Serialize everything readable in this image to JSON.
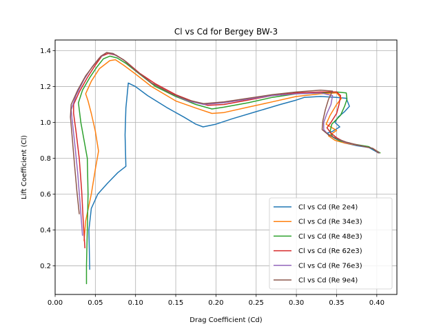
{
  "chart_data": {
    "type": "line",
    "title": "Cl vs Cd for Bergey BW-3",
    "xlabel": "Drag Coefficient (Cd)",
    "ylabel": "Lift Coefficient (Cl)",
    "xlim": [
      0.0,
      0.425
    ],
    "ylim": [
      0.04,
      1.46
    ],
    "xticks": [
      "0.00",
      "0.05",
      "0.10",
      "0.15",
      "0.20",
      "0.25",
      "0.30",
      "0.35",
      "0.40"
    ],
    "yticks": [
      "0.2",
      "0.4",
      "0.6",
      "0.8",
      "1.0",
      "1.2",
      "1.4"
    ],
    "grid": true,
    "legend_position": "lower-right",
    "series": [
      {
        "name": "Cl vs Cd (Re 2e4)",
        "color": "#1f77b4",
        "points": [
          [
            0.043,
            0.18
          ],
          [
            0.042,
            0.4
          ],
          [
            0.045,
            0.52
          ],
          [
            0.053,
            0.6
          ],
          [
            0.065,
            0.66
          ],
          [
            0.078,
            0.72
          ],
          [
            0.088,
            0.755
          ],
          [
            0.087,
            0.93
          ],
          [
            0.088,
            1.08
          ],
          [
            0.091,
            1.22
          ],
          [
            0.1,
            1.2
          ],
          [
            0.115,
            1.15
          ],
          [
            0.14,
            1.08
          ],
          [
            0.16,
            1.03
          ],
          [
            0.175,
            0.99
          ],
          [
            0.184,
            0.975
          ],
          [
            0.2,
            0.99
          ],
          [
            0.22,
            1.02
          ],
          [
            0.25,
            1.06
          ],
          [
            0.28,
            1.1
          ],
          [
            0.3,
            1.125
          ],
          [
            0.31,
            1.14
          ],
          [
            0.33,
            1.145
          ],
          [
            0.35,
            1.14
          ],
          [
            0.362,
            1.135
          ],
          [
            0.366,
            1.09
          ],
          [
            0.36,
            1.06
          ],
          [
            0.352,
            1.03
          ],
          [
            0.348,
            1.0
          ],
          [
            0.354,
            0.975
          ],
          [
            0.345,
            0.95
          ],
          [
            0.338,
            0.94
          ],
          [
            0.348,
            0.91
          ],
          [
            0.36,
            0.885
          ],
          [
            0.375,
            0.87
          ],
          [
            0.39,
            0.86
          ],
          [
            0.402,
            0.83
          ]
        ]
      },
      {
        "name": "Cl vs Cd (Re 34e3)",
        "color": "#ff7f0e",
        "points": [
          [
            0.036,
            0.34
          ],
          [
            0.038,
            0.45
          ],
          [
            0.045,
            0.6
          ],
          [
            0.05,
            0.74
          ],
          [
            0.054,
            0.84
          ],
          [
            0.05,
            0.95
          ],
          [
            0.045,
            1.05
          ],
          [
            0.041,
            1.12
          ],
          [
            0.038,
            1.16
          ],
          [
            0.045,
            1.23
          ],
          [
            0.055,
            1.3
          ],
          [
            0.068,
            1.345
          ],
          [
            0.075,
            1.35
          ],
          [
            0.085,
            1.32
          ],
          [
            0.1,
            1.27
          ],
          [
            0.12,
            1.2
          ],
          [
            0.15,
            1.12
          ],
          [
            0.175,
            1.08
          ],
          [
            0.195,
            1.05
          ],
          [
            0.21,
            1.055
          ],
          [
            0.24,
            1.085
          ],
          [
            0.27,
            1.115
          ],
          [
            0.3,
            1.145
          ],
          [
            0.33,
            1.16
          ],
          [
            0.35,
            1.165
          ],
          [
            0.356,
            1.135
          ],
          [
            0.35,
            1.1
          ],
          [
            0.342,
            1.04
          ],
          [
            0.337,
            0.99
          ],
          [
            0.35,
            0.955
          ],
          [
            0.34,
            0.925
          ],
          [
            0.348,
            0.9
          ],
          [
            0.36,
            0.885
          ],
          [
            0.38,
            0.87
          ],
          [
            0.395,
            0.855
          ],
          [
            0.404,
            0.83
          ]
        ]
      },
      {
        "name": "Cl vs Cd (Re 48e3)",
        "color": "#2ca02c",
        "points": [
          [
            0.039,
            0.1
          ],
          [
            0.039,
            0.2
          ],
          [
            0.04,
            0.4
          ],
          [
            0.041,
            0.6
          ],
          [
            0.04,
            0.8
          ],
          [
            0.036,
            0.9
          ],
          [
            0.032,
            1.0
          ],
          [
            0.029,
            1.11
          ],
          [
            0.034,
            1.18
          ],
          [
            0.043,
            1.25
          ],
          [
            0.052,
            1.31
          ],
          [
            0.06,
            1.355
          ],
          [
            0.068,
            1.37
          ],
          [
            0.077,
            1.36
          ],
          [
            0.088,
            1.33
          ],
          [
            0.105,
            1.27
          ],
          [
            0.125,
            1.2
          ],
          [
            0.15,
            1.145
          ],
          [
            0.175,
            1.1
          ],
          [
            0.195,
            1.075
          ],
          [
            0.21,
            1.085
          ],
          [
            0.24,
            1.11
          ],
          [
            0.27,
            1.14
          ],
          [
            0.3,
            1.16
          ],
          [
            0.33,
            1.165
          ],
          [
            0.35,
            1.17
          ],
          [
            0.362,
            1.165
          ],
          [
            0.363,
            1.13
          ],
          [
            0.36,
            1.09
          ],
          [
            0.355,
            1.04
          ],
          [
            0.344,
            0.99
          ],
          [
            0.342,
            0.95
          ],
          [
            0.345,
            0.92
          ],
          [
            0.355,
            0.895
          ],
          [
            0.37,
            0.88
          ],
          [
            0.39,
            0.865
          ],
          [
            0.404,
            0.83
          ]
        ]
      },
      {
        "name": "Cl vs Cd (Re 62e3)",
        "color": "#d62728",
        "points": [
          [
            0.037,
            0.3
          ],
          [
            0.035,
            0.45
          ],
          [
            0.033,
            0.62
          ],
          [
            0.03,
            0.8
          ],
          [
            0.026,
            0.95
          ],
          [
            0.023,
            1.05
          ],
          [
            0.023,
            1.1
          ],
          [
            0.03,
            1.17
          ],
          [
            0.04,
            1.25
          ],
          [
            0.05,
            1.32
          ],
          [
            0.058,
            1.37
          ],
          [
            0.066,
            1.385
          ],
          [
            0.076,
            1.375
          ],
          [
            0.088,
            1.34
          ],
          [
            0.105,
            1.275
          ],
          [
            0.125,
            1.215
          ],
          [
            0.15,
            1.155
          ],
          [
            0.17,
            1.12
          ],
          [
            0.19,
            1.095
          ],
          [
            0.21,
            1.1
          ],
          [
            0.24,
            1.125
          ],
          [
            0.27,
            1.15
          ],
          [
            0.3,
            1.165
          ],
          [
            0.33,
            1.17
          ],
          [
            0.35,
            1.17
          ],
          [
            0.355,
            1.15
          ],
          [
            0.353,
            1.1
          ],
          [
            0.35,
            1.05
          ],
          [
            0.343,
            1.0
          ],
          [
            0.338,
            0.97
          ],
          [
            0.343,
            0.94
          ],
          [
            0.35,
            0.915
          ],
          [
            0.36,
            0.89
          ],
          [
            0.38,
            0.87
          ],
          [
            0.395,
            0.855
          ],
          [
            0.402,
            0.83
          ]
        ]
      },
      {
        "name": "Cl vs Cd (Re 76e3)",
        "color": "#9467bd",
        "points": [
          [
            0.034,
            0.37
          ],
          [
            0.031,
            0.55
          ],
          [
            0.028,
            0.72
          ],
          [
            0.024,
            0.9
          ],
          [
            0.021,
            1.02
          ],
          [
            0.02,
            1.07
          ],
          [
            0.026,
            1.15
          ],
          [
            0.036,
            1.24
          ],
          [
            0.046,
            1.31
          ],
          [
            0.055,
            1.36
          ],
          [
            0.064,
            1.39
          ],
          [
            0.073,
            1.38
          ],
          [
            0.085,
            1.35
          ],
          [
            0.1,
            1.29
          ],
          [
            0.12,
            1.22
          ],
          [
            0.145,
            1.16
          ],
          [
            0.165,
            1.12
          ],
          [
            0.185,
            1.1
          ],
          [
            0.21,
            1.11
          ],
          [
            0.24,
            1.13
          ],
          [
            0.27,
            1.15
          ],
          [
            0.3,
            1.16
          ],
          [
            0.33,
            1.165
          ],
          [
            0.345,
            1.15
          ],
          [
            0.343,
            1.1
          ],
          [
            0.338,
            1.05
          ],
          [
            0.334,
            1.0
          ],
          [
            0.334,
            0.96
          ],
          [
            0.34,
            0.93
          ],
          [
            0.35,
            0.91
          ],
          [
            0.36,
            0.89
          ],
          [
            0.38,
            0.87
          ],
          [
            0.395,
            0.855
          ],
          [
            0.403,
            0.83
          ]
        ]
      },
      {
        "name": "Cl vs Cd (Re 9e4)",
        "color": "#8c564b",
        "points": [
          [
            0.03,
            0.49
          ],
          [
            0.027,
            0.62
          ],
          [
            0.024,
            0.77
          ],
          [
            0.021,
            0.93
          ],
          [
            0.019,
            1.03
          ],
          [
            0.02,
            1.1
          ],
          [
            0.028,
            1.18
          ],
          [
            0.038,
            1.26
          ],
          [
            0.048,
            1.32
          ],
          [
            0.057,
            1.37
          ],
          [
            0.064,
            1.39
          ],
          [
            0.072,
            1.385
          ],
          [
            0.085,
            1.35
          ],
          [
            0.1,
            1.29
          ],
          [
            0.12,
            1.22
          ],
          [
            0.145,
            1.16
          ],
          [
            0.165,
            1.125
          ],
          [
            0.185,
            1.105
          ],
          [
            0.21,
            1.115
          ],
          [
            0.24,
            1.135
          ],
          [
            0.27,
            1.155
          ],
          [
            0.3,
            1.17
          ],
          [
            0.33,
            1.18
          ],
          [
            0.345,
            1.175
          ],
          [
            0.34,
            1.13
          ],
          [
            0.336,
            1.07
          ],
          [
            0.333,
            1.01
          ],
          [
            0.332,
            0.96
          ],
          [
            0.34,
            0.93
          ],
          [
            0.35,
            0.91
          ],
          [
            0.362,
            0.89
          ],
          [
            0.38,
            0.87
          ],
          [
            0.395,
            0.855
          ],
          [
            0.402,
            0.83
          ]
        ]
      }
    ]
  }
}
